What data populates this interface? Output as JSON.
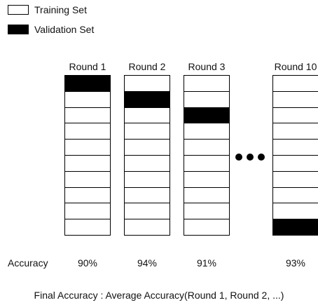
{
  "legend": [
    {
      "label": "Training Set",
      "color": "#ffffff"
    },
    {
      "label": "Validation Set",
      "color": "#000000"
    }
  ],
  "folds_per_round": 10,
  "rounds": [
    {
      "title": "Round 1",
      "validation_fold": 1,
      "accuracy": "90%"
    },
    {
      "title": "Round 2",
      "validation_fold": 2,
      "accuracy": "94%"
    },
    {
      "title": "Round 3",
      "validation_fold": 3,
      "accuracy": "91%"
    },
    {
      "title": "Round 10",
      "validation_fold": 10,
      "accuracy": "93%"
    }
  ],
  "accuracy_label": "Accuracy",
  "final_text": "Final Accuracy : Average Accuracy(Round 1, Round 2, ...)",
  "ellipsis_icon": "ellipsis-dots-icon"
}
